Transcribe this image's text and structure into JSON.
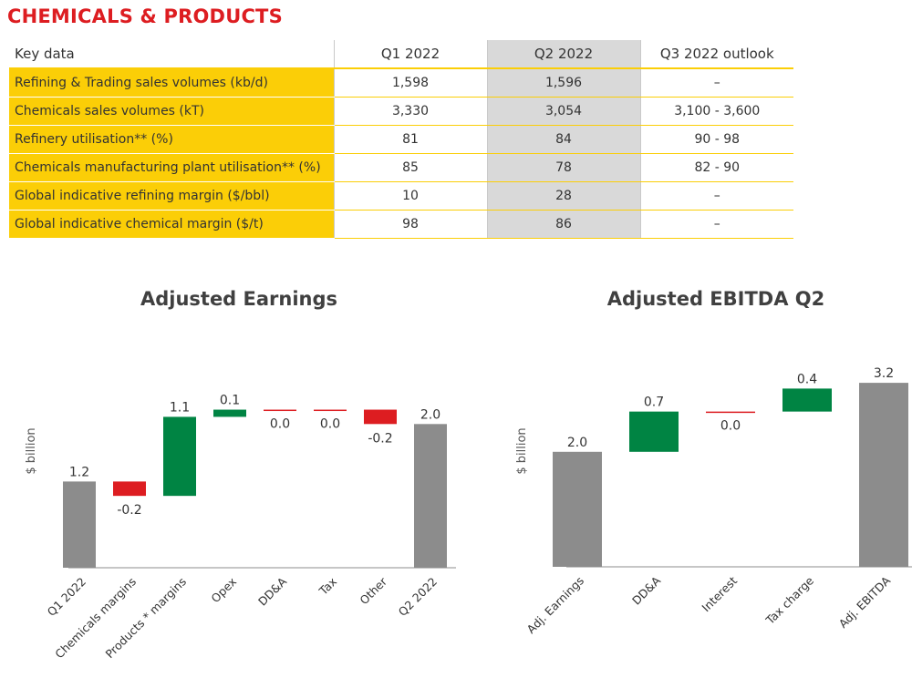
{
  "page": {
    "title": "CHEMICALS & PRODUCTS"
  },
  "table": {
    "headers": [
      "Key data",
      "Q1 2022",
      "Q2 2022",
      "Q3 2022 outlook"
    ],
    "rows": [
      {
        "label": "Refining & Trading sales volumes (kb/d)",
        "q1": "1,598",
        "q2": "1,596",
        "q3": "–"
      },
      {
        "label": "Chemicals sales volumes (kT)",
        "q1": "3,330",
        "q2": "3,054",
        "q3": "3,100 - 3,600"
      },
      {
        "label": "Refinery utilisation** (%)",
        "q1": "81",
        "q2": "84",
        "q3": "90 - 98"
      },
      {
        "label": "Chemicals manufacturing plant utilisation** (%)",
        "q1": "85",
        "q2": "78",
        "q3": "82 - 90"
      },
      {
        "label": "Global indicative refining margin ($/bbl)",
        "q1": "10",
        "q2": "28",
        "q3": "–"
      },
      {
        "label": "Global indicative chemical margin ($/t)",
        "q1": "98",
        "q2": "86",
        "q3": "–"
      }
    ]
  },
  "colors": {
    "brand_red": "#dd1d21",
    "brand_yellow": "#fbce07",
    "total": "#8c8c8c",
    "increase": "#008443",
    "decrease": "#dd1d21"
  },
  "chart_data": [
    {
      "type": "waterfall",
      "title": "Adjusted Earnings",
      "ylabel": "$ billion",
      "categories": [
        "Q1 2022",
        "Chemicals margins",
        "Products * margins",
        "Opex",
        "DD&A",
        "Tax",
        "Other",
        "Q2 2022"
      ],
      "values": [
        1.2,
        -0.2,
        1.1,
        0.1,
        0.0,
        0.0,
        -0.2,
        2.0
      ],
      "labels": [
        "1.2",
        "-0.2",
        "1.1",
        "0.1",
        "0.0",
        "0.0",
        "-0.2",
        "2.0"
      ],
      "kinds": [
        "total",
        "delta",
        "delta",
        "delta",
        "delta",
        "delta",
        "delta",
        "total"
      ],
      "ylim": [
        0,
        2.6
      ],
      "grid": false
    },
    {
      "type": "waterfall",
      "title": "Adjusted EBITDA Q2",
      "ylabel": "$ billion",
      "categories": [
        "Adj. Earnings",
        "DD&A",
        "Interest",
        "Tax charge",
        "Adj. EBITDA"
      ],
      "values": [
        2.0,
        0.7,
        0.0,
        0.4,
        3.2
      ],
      "labels": [
        "2.0",
        "0.7",
        "0.0",
        "0.4",
        "3.2"
      ],
      "kinds": [
        "total",
        "delta",
        "delta",
        "delta",
        "total"
      ],
      "ylim": [
        0,
        3.55
      ],
      "grid": false
    }
  ]
}
